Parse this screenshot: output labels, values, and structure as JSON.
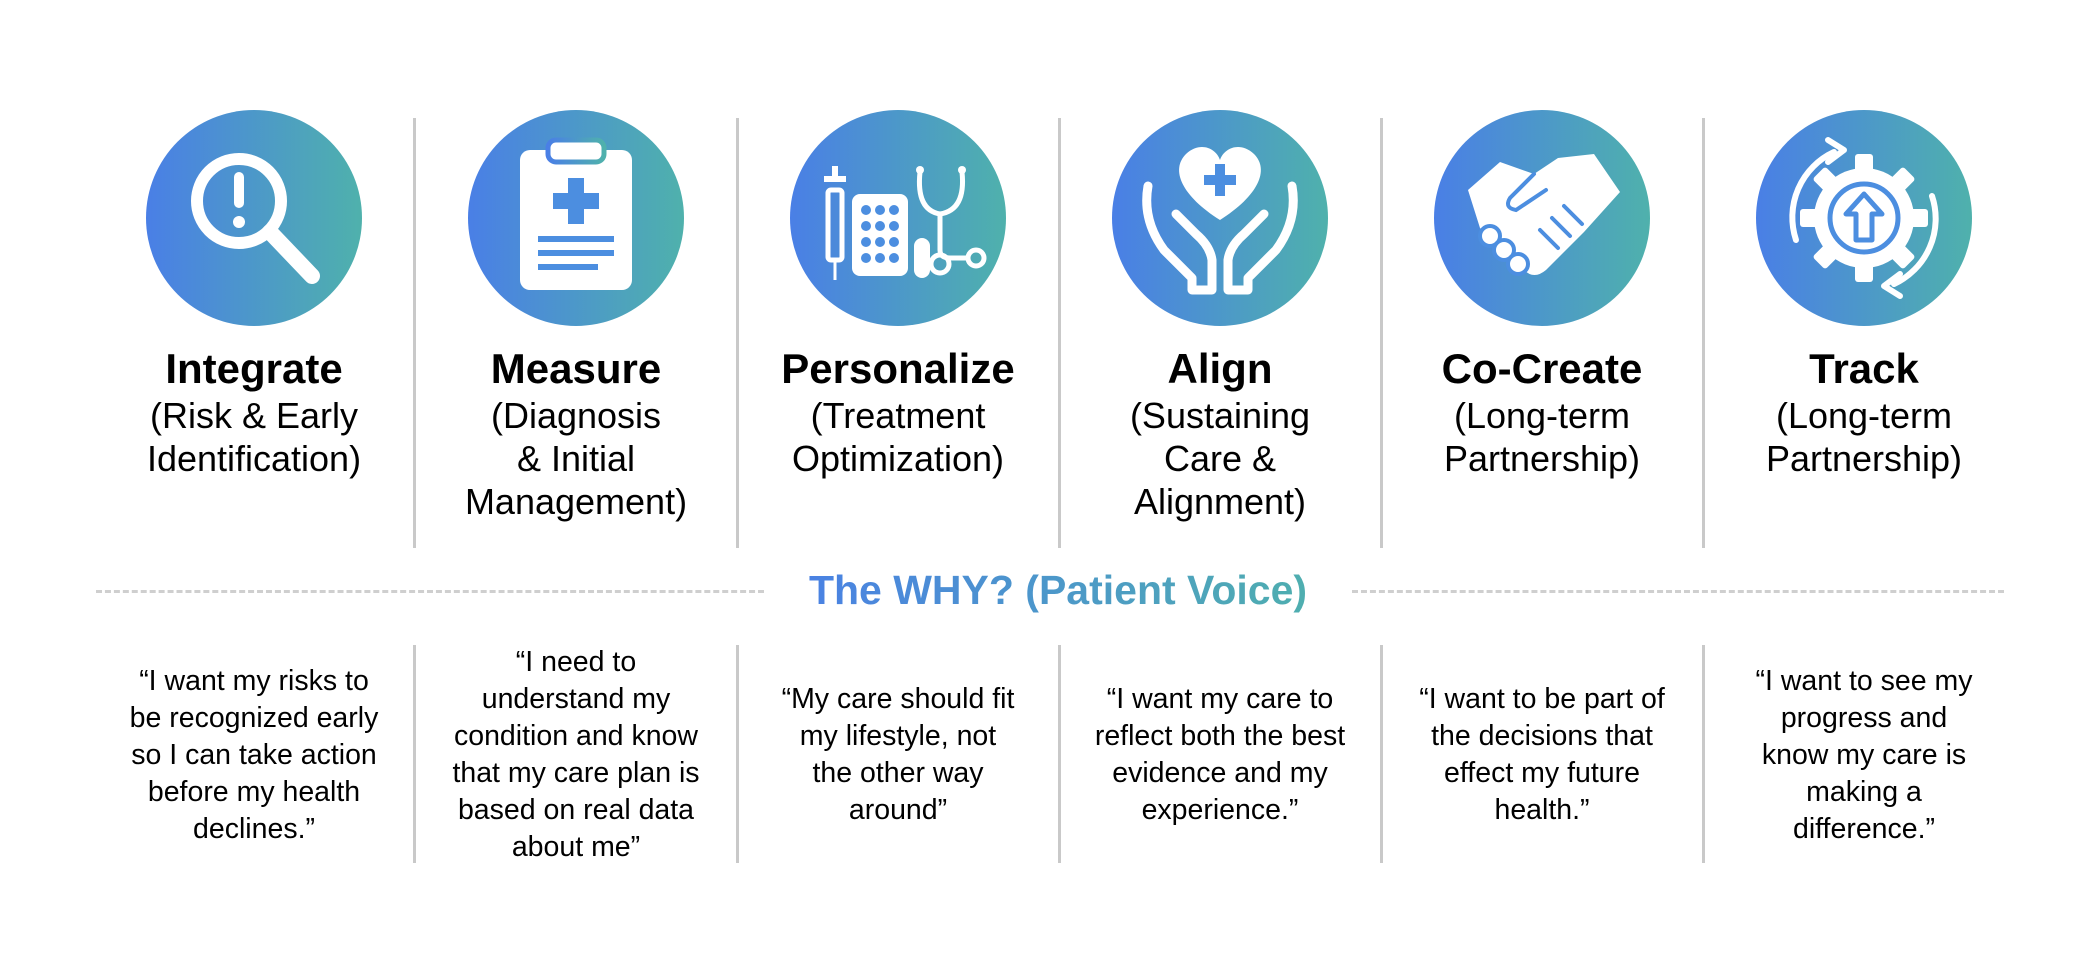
{
  "colors": {
    "gradient_start": "#4a7fe6",
    "gradient_end": "#4fb1ac",
    "divider": "#c9c9c9"
  },
  "steps": [
    {
      "icon": "magnifier-exclamation-icon",
      "title": "Integrate",
      "subtitle": "(Risk & Early\nIdentification)"
    },
    {
      "icon": "clipboard-medical-icon",
      "title": "Measure",
      "subtitle": "(Diagnosis\n& Initial\nManagement)"
    },
    {
      "icon": "medications-stethoscope-icon",
      "title": "Personalize",
      "subtitle": "(Treatment\nOptimization)"
    },
    {
      "icon": "hands-heart-icon",
      "title": "Align",
      "subtitle": "(Sustaining\nCare &\nAlignment)"
    },
    {
      "icon": "handshake-icon",
      "title": "Co-Create",
      "subtitle": "(Long-term\nPartnership)"
    },
    {
      "icon": "gear-cycle-icon",
      "title": "Track",
      "subtitle": "(Long-term\nPartnership)"
    }
  ],
  "why_heading": "The WHY? (Patient Voice)",
  "quotes": [
    "“I want my risks to\nbe recognized early\nso I can take action\nbefore my health\ndeclines.”",
    "“I need to\nunderstand my\ncondition and know\nthat my care plan is\nbased on real data\nabout me”",
    "“My care should fit\nmy lifestyle, not\nthe other way\naround”",
    "“I want my care to\nreflect both the best\nevidence and my\nexperience.”",
    "“I want to be part of\nthe decisions that\neffect my future\nhealth.”",
    "“I want to see my\nprogress and\nknow my care is\nmaking a\ndifference.”"
  ]
}
